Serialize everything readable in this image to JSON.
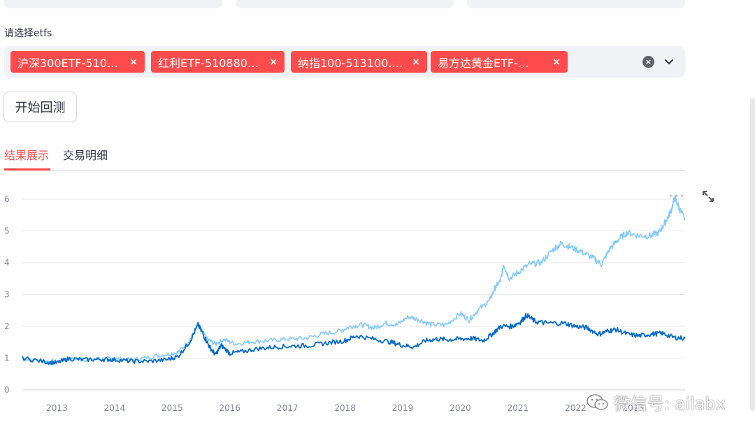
{
  "select_label": "请选择etfs",
  "tags": [
    {
      "label": "沪深300ETF-510…"
    },
    {
      "label": "红利ETF-510880…"
    },
    {
      "label": "纳指100-513100.…"
    },
    {
      "label": "易方达黄金ETF-…"
    }
  ],
  "tag_remove_glyph": "×",
  "run_button": "开始回测",
  "tabs": [
    {
      "label": "结果展示",
      "active": true
    },
    {
      "label": "交易明细",
      "active": false
    }
  ],
  "watermark": "微信号: ailabx",
  "colors": {
    "accent": "#ff4b4b",
    "portfolio": "#83c9ff",
    "benchmark": "#0068c9"
  },
  "chart_data": {
    "type": "line",
    "ylim": [
      0,
      6.3
    ],
    "y_ticks": [
      "0",
      "1",
      "2",
      "3",
      "4",
      "5",
      "6"
    ],
    "x_ticks": [
      "2013",
      "2014",
      "2015",
      "2016",
      "2017",
      "2018",
      "2019",
      "2020",
      "2021",
      "2022",
      "2023"
    ],
    "x_range": [
      2012.4,
      2023.9
    ],
    "series": [
      {
        "color": "#83c9ff",
        "points": [
          [
            2012.4,
            1.0
          ],
          [
            2012.8,
            0.9
          ],
          [
            2013.0,
            0.88
          ],
          [
            2013.2,
            0.98
          ],
          [
            2013.5,
            0.95
          ],
          [
            2013.8,
            0.98
          ],
          [
            2014.0,
            0.97
          ],
          [
            2014.3,
            0.95
          ],
          [
            2014.6,
            1.03
          ],
          [
            2014.9,
            1.12
          ],
          [
            2015.1,
            1.18
          ],
          [
            2015.3,
            1.55
          ],
          [
            2015.45,
            2.05
          ],
          [
            2015.6,
            1.6
          ],
          [
            2015.75,
            1.45
          ],
          [
            2015.9,
            1.58
          ],
          [
            2016.1,
            1.45
          ],
          [
            2016.4,
            1.52
          ],
          [
            2016.7,
            1.55
          ],
          [
            2017.0,
            1.6
          ],
          [
            2017.3,
            1.62
          ],
          [
            2017.6,
            1.75
          ],
          [
            2017.9,
            1.85
          ],
          [
            2018.1,
            2.0
          ],
          [
            2018.3,
            2.05
          ],
          [
            2018.5,
            1.95
          ],
          [
            2018.7,
            2.1
          ],
          [
            2018.9,
            2.05
          ],
          [
            2019.1,
            2.3
          ],
          [
            2019.3,
            2.2
          ],
          [
            2019.5,
            2.05
          ],
          [
            2019.75,
            2.05
          ],
          [
            2020.0,
            2.4
          ],
          [
            2020.15,
            2.2
          ],
          [
            2020.3,
            2.5
          ],
          [
            2020.5,
            2.8
          ],
          [
            2020.6,
            3.2
          ],
          [
            2020.7,
            3.45
          ],
          [
            2020.75,
            3.95
          ],
          [
            2020.85,
            3.5
          ],
          [
            2021.0,
            3.7
          ],
          [
            2021.2,
            3.95
          ],
          [
            2021.4,
            4.0
          ],
          [
            2021.6,
            4.4
          ],
          [
            2021.75,
            4.6
          ],
          [
            2021.9,
            4.5
          ],
          [
            2022.1,
            4.35
          ],
          [
            2022.3,
            4.15
          ],
          [
            2022.45,
            3.95
          ],
          [
            2022.6,
            4.45
          ],
          [
            2022.75,
            4.75
          ],
          [
            2022.9,
            4.95
          ],
          [
            2023.1,
            4.85
          ],
          [
            2023.3,
            4.85
          ],
          [
            2023.45,
            4.95
          ],
          [
            2023.55,
            5.25
          ],
          [
            2023.65,
            5.6
          ],
          [
            2023.72,
            6.05
          ],
          [
            2023.8,
            5.7
          ],
          [
            2023.9,
            5.35
          ]
        ]
      },
      {
        "color": "#0068c9",
        "points": [
          [
            2012.4,
            1.0
          ],
          [
            2012.8,
            0.88
          ],
          [
            2013.0,
            0.85
          ],
          [
            2013.2,
            0.98
          ],
          [
            2013.5,
            0.95
          ],
          [
            2013.8,
            0.96
          ],
          [
            2014.0,
            0.95
          ],
          [
            2014.3,
            0.9
          ],
          [
            2014.6,
            0.9
          ],
          [
            2014.9,
            0.95
          ],
          [
            2015.1,
            1.05
          ],
          [
            2015.3,
            1.5
          ],
          [
            2015.45,
            2.05
          ],
          [
            2015.55,
            1.7
          ],
          [
            2015.65,
            1.35
          ],
          [
            2015.75,
            1.1
          ],
          [
            2015.85,
            1.4
          ],
          [
            2016.0,
            1.15
          ],
          [
            2016.2,
            1.2
          ],
          [
            2016.5,
            1.3
          ],
          [
            2016.8,
            1.35
          ],
          [
            2017.1,
            1.38
          ],
          [
            2017.4,
            1.4
          ],
          [
            2017.7,
            1.48
          ],
          [
            2018.0,
            1.55
          ],
          [
            2018.2,
            1.7
          ],
          [
            2018.5,
            1.6
          ],
          [
            2018.8,
            1.5
          ],
          [
            2019.0,
            1.4
          ],
          [
            2019.2,
            1.35
          ],
          [
            2019.4,
            1.55
          ],
          [
            2019.6,
            1.6
          ],
          [
            2019.8,
            1.58
          ],
          [
            2020.0,
            1.6
          ],
          [
            2020.2,
            1.62
          ],
          [
            2020.4,
            1.55
          ],
          [
            2020.55,
            1.75
          ],
          [
            2020.7,
            2.0
          ],
          [
            2020.9,
            2.0
          ],
          [
            2021.05,
            2.15
          ],
          [
            2021.15,
            2.35
          ],
          [
            2021.3,
            2.15
          ],
          [
            2021.5,
            2.1
          ],
          [
            2021.8,
            2.1
          ],
          [
            2022.0,
            2.0
          ],
          [
            2022.2,
            1.95
          ],
          [
            2022.4,
            1.75
          ],
          [
            2022.55,
            1.85
          ],
          [
            2022.7,
            1.9
          ],
          [
            2022.9,
            1.75
          ],
          [
            2023.1,
            1.7
          ],
          [
            2023.3,
            1.75
          ],
          [
            2023.5,
            1.78
          ],
          [
            2023.7,
            1.65
          ],
          [
            2023.9,
            1.62
          ]
        ]
      }
    ]
  }
}
